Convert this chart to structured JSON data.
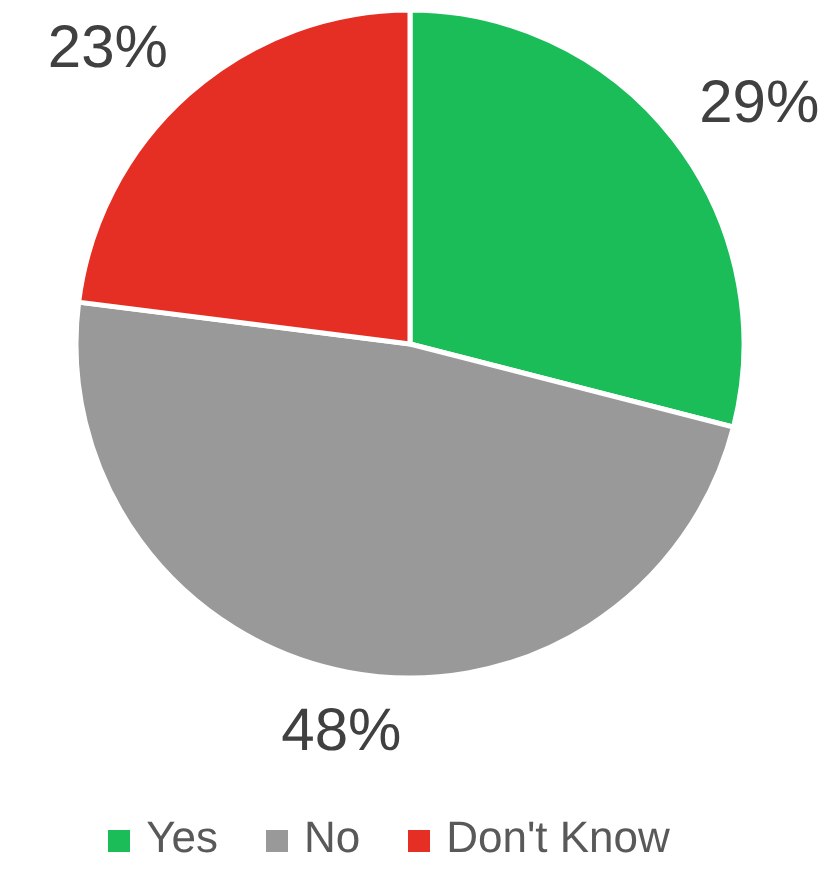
{
  "chart_data": {
    "type": "pie",
    "categories": [
      "Yes",
      "No",
      "Don't Know"
    ],
    "values": [
      29,
      48,
      23
    ],
    "colors": [
      "#1abd58",
      "#999999",
      "#e52e24"
    ],
    "value_labels": [
      "29%",
      "48%",
      "23%"
    ],
    "legend": "bottom"
  }
}
